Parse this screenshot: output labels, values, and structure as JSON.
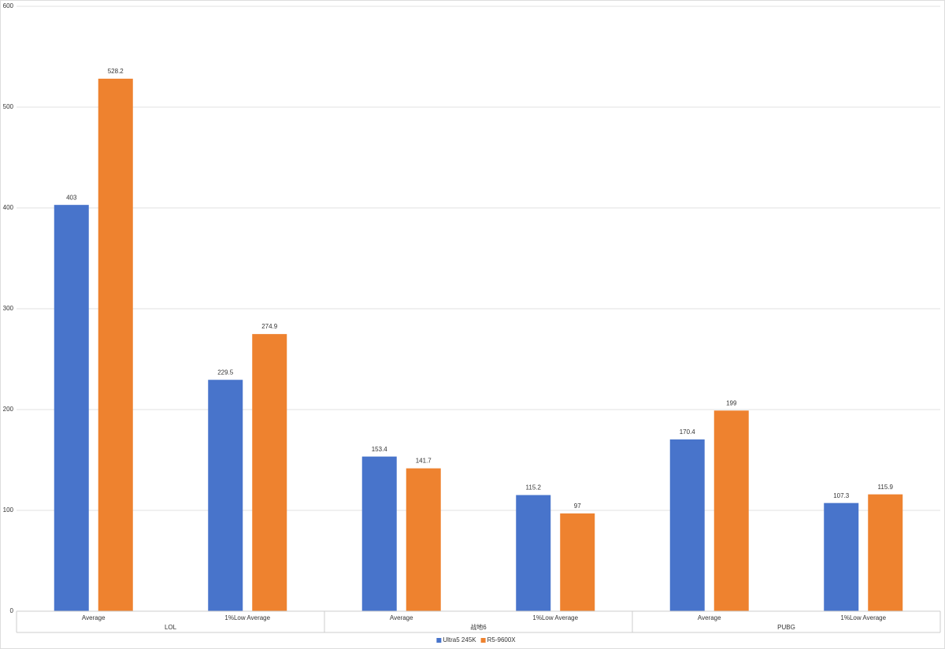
{
  "chart_data": {
    "type": "bar",
    "categories": [
      "Average",
      "1%Low Average",
      "Average",
      "1%Low Average",
      "Average",
      "1%Low Average"
    ],
    "groups": [
      "LOL",
      "战地6",
      "PUBG"
    ],
    "series": [
      {
        "name": "Ultra5 245K",
        "color": "#4874cb",
        "values": [
          403,
          229.5,
          153.4,
          115.2,
          170.4,
          107.3
        ]
      },
      {
        "name": "R5-9600X",
        "color": "#ee822f",
        "values": [
          528.2,
          274.9,
          141.7,
          97,
          199,
          115.9
        ]
      }
    ],
    "ylim": [
      0,
      600
    ],
    "yticks": [
      0,
      100,
      200,
      300,
      400,
      500,
      600
    ],
    "grid": true,
    "legend": "bottom"
  }
}
